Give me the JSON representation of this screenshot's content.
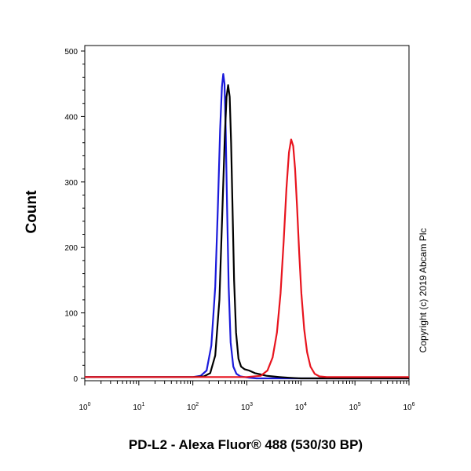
{
  "chart_data": {
    "type": "line",
    "xlabel": "PD-L2 - Alexa Fluor® 488 (530/30 BP)",
    "ylabel": "Count",
    "copyright": "Copyright (c) 2019 Abcam Plc",
    "x_scale": "log",
    "x_ticks": [
      {
        "base": "10",
        "exp": "0",
        "value": 1
      },
      {
        "base": "10",
        "exp": "1",
        "value": 10
      },
      {
        "base": "10",
        "exp": "2",
        "value": 100
      },
      {
        "base": "10",
        "exp": "3",
        "value": 1000
      },
      {
        "base": "10",
        "exp": "4",
        "value": 10000
      },
      {
        "base": "10",
        "exp": "5",
        "value": 100000
      },
      {
        "base": "10",
        "exp": "6",
        "value": 1000000
      }
    ],
    "y_ticks": [
      "0",
      "100",
      "200",
      "300",
      "400",
      "500"
    ],
    "xlim": [
      1,
      1000000
    ],
    "ylim": [
      0,
      500
    ],
    "series": [
      {
        "color": "#1a1adb",
        "x": [
          1,
          50,
          100,
          140,
          180,
          220,
          260,
          290,
          320,
          345,
          365,
          385,
          405,
          430,
          460,
          500,
          560,
          640,
          760,
          900,
          1100,
          1500,
          2500,
          1000000
        ],
        "y": [
          2,
          2,
          2,
          4,
          12,
          50,
          140,
          260,
          380,
          445,
          465,
          450,
          380,
          260,
          140,
          55,
          18,
          7,
          3,
          2,
          1,
          0,
          0,
          0
        ]
      },
      {
        "color": "#000000",
        "x": [
          1,
          50,
          100,
          160,
          210,
          260,
          310,
          350,
          390,
          420,
          450,
          480,
          510,
          545,
          580,
          630,
          700,
          780,
          900,
          1100,
          1400,
          1800,
          2300,
          3000,
          4000,
          6000,
          10000,
          1000000
        ],
        "y": [
          2,
          2,
          2,
          3,
          8,
          35,
          120,
          250,
          370,
          430,
          448,
          430,
          360,
          250,
          150,
          70,
          30,
          18,
          14,
          12,
          8,
          6,
          4,
          3,
          2,
          1,
          0,
          0
        ]
      },
      {
        "color": "#e8141e",
        "x": [
          1,
          100,
          1000,
          1800,
          2400,
          3000,
          3600,
          4200,
          4800,
          5400,
          6000,
          6600,
          7200,
          7800,
          8500,
          9300,
          10200,
          11500,
          13000,
          15000,
          18000,
          22000,
          30000,
          1000000
        ],
        "y": [
          2,
          2,
          2,
          4,
          12,
          32,
          70,
          130,
          210,
          290,
          345,
          365,
          355,
          320,
          260,
          190,
          130,
          75,
          40,
          18,
          7,
          3,
          2,
          2
        ]
      }
    ]
  }
}
